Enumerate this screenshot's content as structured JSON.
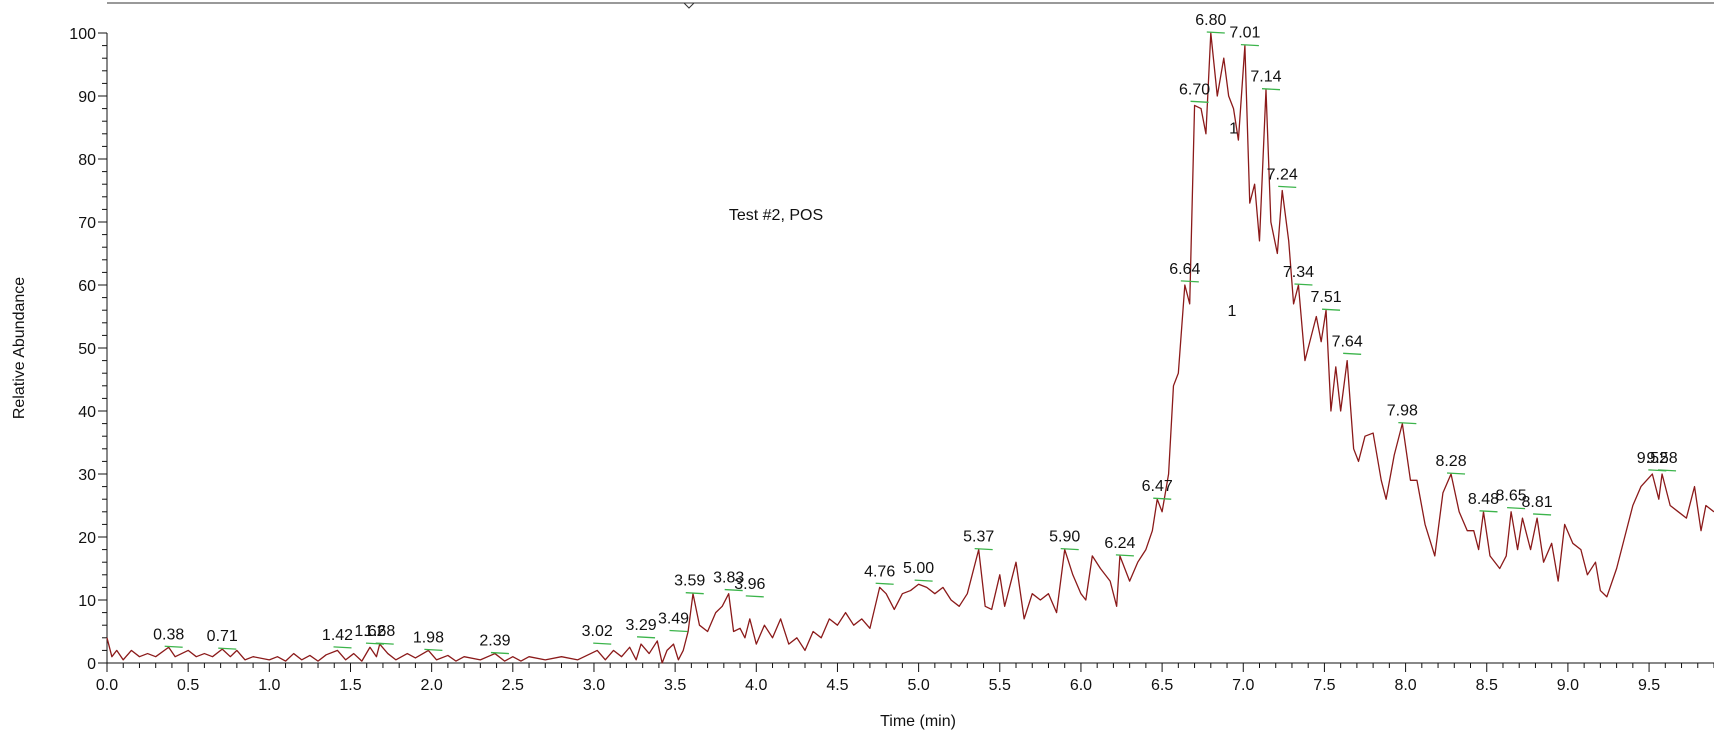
{
  "chart_data": {
    "type": "line",
    "title": "Test #2, POS",
    "x_label": "Time (min)",
    "y_label": "Relative Abundance",
    "xlim": [
      0,
      9.9
    ],
    "ylim": [
      0,
      100
    ],
    "xticks": [
      {
        "value": 0,
        "label": "0.0"
      },
      0.5,
      {
        "value": 1,
        "label": "1.0"
      },
      1.5,
      {
        "value": 2,
        "label": "2.0"
      },
      2.5,
      {
        "value": 3,
        "label": "3.0"
      },
      3.5,
      {
        "value": 4,
        "label": "4.0"
      },
      4.5,
      {
        "value": 5,
        "label": "5.0"
      },
      5.5,
      {
        "value": 6,
        "label": "6.0"
      },
      6.5,
      {
        "value": 7,
        "label": "7.0"
      },
      7.5,
      {
        "value": 8,
        "label": "8.0"
      },
      8.5,
      {
        "value": 9,
        "label": "9.0"
      },
      9.5
    ],
    "yticks": [
      0,
      10,
      20,
      30,
      40,
      50,
      60,
      70,
      80,
      90,
      100
    ],
    "series": [
      {
        "color": "#8b1a1a",
        "x": [
          0,
          0.03,
          0.06,
          0.1,
          0.15,
          0.2,
          0.25,
          0.3,
          0.38,
          0.42,
          0.5,
          0.55,
          0.6,
          0.65,
          0.71,
          0.76,
          0.8,
          0.85,
          0.9,
          1.0,
          1.05,
          1.1,
          1.15,
          1.2,
          1.25,
          1.3,
          1.35,
          1.42,
          1.47,
          1.52,
          1.57,
          1.62,
          1.66,
          1.68,
          1.73,
          1.78,
          1.85,
          1.9,
          1.98,
          2.03,
          2.1,
          2.15,
          2.2,
          2.3,
          2.39,
          2.45,
          2.5,
          2.55,
          2.6,
          2.7,
          2.8,
          2.9,
          3.02,
          3.07,
          3.12,
          3.17,
          3.22,
          3.26,
          3.29,
          3.34,
          3.39,
          3.42,
          3.45,
          3.49,
          3.52,
          3.55,
          3.58,
          3.61,
          3.65,
          3.7,
          3.75,
          3.79,
          3.83,
          3.86,
          3.9,
          3.93,
          3.96,
          4.0,
          4.05,
          4.1,
          4.15,
          4.2,
          4.25,
          4.3,
          4.35,
          4.4,
          4.45,
          4.5,
          4.55,
          4.6,
          4.65,
          4.7,
          4.76,
          4.8,
          4.85,
          4.9,
          4.95,
          5.0,
          5.05,
          5.1,
          5.15,
          5.2,
          5.25,
          5.3,
          5.37,
          5.41,
          5.45,
          5.5,
          5.53,
          5.6,
          5.65,
          5.7,
          5.75,
          5.8,
          5.85,
          5.9,
          5.95,
          6.0,
          6.03,
          6.07,
          6.12,
          6.18,
          6.22,
          6.24,
          6.3,
          6.35,
          6.4,
          6.44,
          6.47,
          6.5,
          6.54,
          6.57,
          6.6,
          6.64,
          6.67,
          6.7,
          6.74,
          6.77,
          6.8,
          6.84,
          6.88,
          6.91,
          6.94,
          6.97,
          7.01,
          7.04,
          7.07,
          7.1,
          7.14,
          7.17,
          7.21,
          7.24,
          7.28,
          7.31,
          7.34,
          7.38,
          7.42,
          7.45,
          7.48,
          7.51,
          7.54,
          7.57,
          7.6,
          7.64,
          7.68,
          7.71,
          7.75,
          7.8,
          7.85,
          7.88,
          7.93,
          7.98,
          8.03,
          8.07,
          8.12,
          8.18,
          8.23,
          8.28,
          8.33,
          8.38,
          8.42,
          8.45,
          8.48,
          8.52,
          8.58,
          8.62,
          8.65,
          8.69,
          8.72,
          8.77,
          8.81,
          8.85,
          8.9,
          8.94,
          8.98,
          9.03,
          9.08,
          9.12,
          9.17,
          9.2,
          9.24,
          9.3,
          9.35,
          9.4,
          9.45,
          9.52,
          9.56,
          9.58,
          9.63,
          9.68,
          9.73,
          9.78,
          9.82,
          9.85,
          9.9
        ],
        "values": [
          4,
          1,
          2,
          0.5,
          2,
          1,
          1.5,
          1,
          2.5,
          1,
          2,
          1,
          1.5,
          1,
          2.2,
          1,
          2,
          0.5,
          1,
          0.5,
          1,
          0.3,
          1.5,
          0.5,
          1.2,
          0.3,
          1.3,
          2,
          0.5,
          1.5,
          0.3,
          2.5,
          1,
          3,
          1.5,
          0.5,
          1.5,
          0.8,
          2,
          0.5,
          1.2,
          0.3,
          1,
          0.5,
          1.5,
          0.3,
          1,
          0.3,
          1,
          0.5,
          1,
          0.5,
          2,
          0.5,
          2,
          1,
          2.5,
          0.5,
          3,
          1.5,
          3.5,
          0,
          2,
          3,
          0.5,
          2,
          5,
          11,
          6,
          5,
          8,
          9,
          11,
          5,
          5.5,
          4,
          7,
          3,
          6,
          4,
          7,
          3,
          4,
          2,
          5,
          4,
          7,
          6,
          8,
          6,
          7,
          5.5,
          12,
          11,
          8.5,
          11,
          11.5,
          12.5,
          12,
          11,
          12,
          10,
          9,
          11,
          18,
          9,
          8.5,
          14,
          9,
          16,
          7,
          11,
          10,
          11,
          8,
          18,
          14,
          11,
          10,
          17,
          15,
          13,
          9,
          17,
          13,
          16,
          18,
          21,
          26,
          24,
          30,
          44,
          46,
          60,
          57,
          88.5,
          88,
          84,
          100,
          90,
          96,
          90,
          88,
          83,
          98,
          73,
          76,
          67,
          91,
          70,
          65,
          75,
          67,
          57,
          60,
          48,
          52,
          55,
          51,
          56,
          40,
          47,
          40,
          48,
          34,
          32,
          36,
          36.5,
          29,
          26,
          33,
          38,
          29,
          29,
          22,
          17,
          27,
          30,
          24,
          21,
          21,
          18,
          24,
          17,
          15,
          17,
          24,
          18,
          23,
          18,
          23,
          16,
          19,
          13,
          22,
          19,
          18,
          14,
          16,
          11.5,
          10.5,
          15,
          20,
          25,
          28,
          30,
          26,
          30,
          25,
          24,
          23,
          28,
          21,
          25,
          24
        ]
      }
    ],
    "annotations": [
      {
        "x": 0.38,
        "y": 2.5,
        "label": "0.38"
      },
      {
        "x": 0.71,
        "y": 2.2,
        "label": "0.71"
      },
      {
        "x": 1.42,
        "y": 2.4,
        "label": "1.42"
      },
      {
        "x": 1.62,
        "y": 3,
        "label": "1.62"
      },
      {
        "x": 1.68,
        "y": 3,
        "label": "1.68"
      },
      {
        "x": 1.98,
        "y": 2,
        "label": "1.98"
      },
      {
        "x": 2.39,
        "y": 1.5,
        "label": "2.39"
      },
      {
        "x": 3.02,
        "y": 3,
        "label": "3.02"
      },
      {
        "x": 3.29,
        "y": 4,
        "label": "3.29"
      },
      {
        "x": 3.49,
        "y": 5,
        "label": "3.49"
      },
      {
        "x": 3.59,
        "y": 11,
        "label": "3.59"
      },
      {
        "x": 3.83,
        "y": 11.5,
        "label": "3.83"
      },
      {
        "x": 3.96,
        "y": 10.5,
        "label": "3.96"
      },
      {
        "x": 4.76,
        "y": 12.5,
        "label": "4.76"
      },
      {
        "x": 5.0,
        "y": 13,
        "label": "5.00"
      },
      {
        "x": 5.37,
        "y": 18,
        "label": "5.37"
      },
      {
        "x": 5.9,
        "y": 18,
        "label": "5.90"
      },
      {
        "x": 6.24,
        "y": 17,
        "label": "6.24"
      },
      {
        "x": 6.47,
        "y": 26,
        "label": "6.47"
      },
      {
        "x": 6.64,
        "y": 60.5,
        "label": "6.64"
      },
      {
        "x": 6.7,
        "y": 89,
        "label": "6.70"
      },
      {
        "x": 6.8,
        "y": 100,
        "label": "6.80"
      },
      {
        "x": 7.01,
        "y": 98,
        "label": "7.01"
      },
      {
        "x": 7.14,
        "y": 91,
        "label": "7.14"
      },
      {
        "x": 7.24,
        "y": 75.5,
        "label": "7.24"
      },
      {
        "x": 7.34,
        "y": 60,
        "label": "7.34"
      },
      {
        "x": 7.51,
        "y": 56,
        "label": "7.51"
      },
      {
        "x": 7.64,
        "y": 49,
        "label": "7.64"
      },
      {
        "x": 7.98,
        "y": 38,
        "label": "7.98"
      },
      {
        "x": 8.28,
        "y": 30,
        "label": "8.28"
      },
      {
        "x": 8.48,
        "y": 24,
        "label": "8.48"
      },
      {
        "x": 8.65,
        "y": 24.5,
        "label": "8.65"
      },
      {
        "x": 8.81,
        "y": 23.5,
        "label": "8.81"
      },
      {
        "x": 9.52,
        "y": 30.5,
        "label": "9.52"
      },
      {
        "x": 9.58,
        "y": 30.5,
        "label": "9.58"
      }
    ],
    "markers": [
      {
        "x": 6.94,
        "y": 85,
        "label": "1"
      },
      {
        "x": 6.93,
        "y": 56,
        "label": "1"
      }
    ]
  }
}
